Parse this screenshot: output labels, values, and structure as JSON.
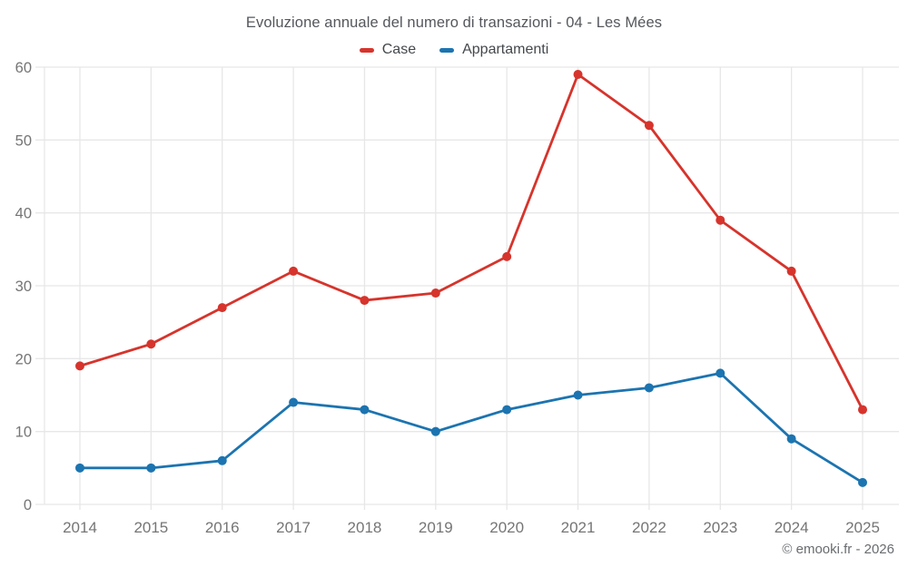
{
  "title": "Evoluzione annuale del numero di transazioni - 04 - Les Mées",
  "footer": {
    "text": "© emooki.fr - 2026"
  },
  "chart_data": {
    "type": "line",
    "title": "Evoluzione annuale del numero di transazioni - 04 - Les Mées",
    "x": [
      2014,
      2015,
      2016,
      2017,
      2018,
      2019,
      2020,
      2021,
      2022,
      2023,
      2024,
      2025
    ],
    "series": [
      {
        "name": "Case",
        "color": "#d6342c",
        "values": [
          19,
          22,
          27,
          32,
          28,
          29,
          34,
          59,
          52,
          39,
          32,
          13
        ]
      },
      {
        "name": "Appartamenti",
        "color": "#1c74b0",
        "values": [
          5,
          5,
          6,
          14,
          13,
          10,
          13,
          15,
          16,
          18,
          9,
          3
        ]
      }
    ],
    "xlabel": "",
    "ylabel": "",
    "ylim": [
      0,
      60
    ],
    "yticks": [
      0,
      10,
      20,
      30,
      40,
      50,
      60
    ],
    "grid": true,
    "legend_position": "top"
  }
}
